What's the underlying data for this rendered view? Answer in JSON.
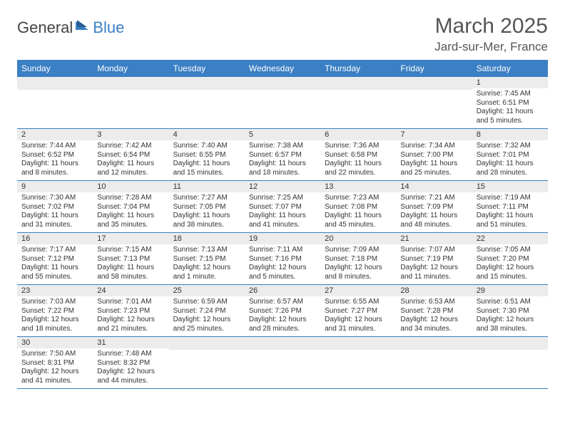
{
  "logo": {
    "part1": "General",
    "part2": "Blue"
  },
  "title": "March 2025",
  "location": "Jard-sur-Mer, France",
  "header_color": "#3b7fc4",
  "daynum_bg": "#ececec",
  "weekdays": [
    "Sunday",
    "Monday",
    "Tuesday",
    "Wednesday",
    "Thursday",
    "Friday",
    "Saturday"
  ],
  "weeks": [
    [
      {
        "num": "",
        "lines": []
      },
      {
        "num": "",
        "lines": []
      },
      {
        "num": "",
        "lines": []
      },
      {
        "num": "",
        "lines": []
      },
      {
        "num": "",
        "lines": []
      },
      {
        "num": "",
        "lines": []
      },
      {
        "num": "1",
        "lines": [
          "Sunrise: 7:45 AM",
          "Sunset: 6:51 PM",
          "Daylight: 11 hours and 5 minutes."
        ]
      }
    ],
    [
      {
        "num": "2",
        "lines": [
          "Sunrise: 7:44 AM",
          "Sunset: 6:52 PM",
          "Daylight: 11 hours and 8 minutes."
        ]
      },
      {
        "num": "3",
        "lines": [
          "Sunrise: 7:42 AM",
          "Sunset: 6:54 PM",
          "Daylight: 11 hours and 12 minutes."
        ]
      },
      {
        "num": "4",
        "lines": [
          "Sunrise: 7:40 AM",
          "Sunset: 6:55 PM",
          "Daylight: 11 hours and 15 minutes."
        ]
      },
      {
        "num": "5",
        "lines": [
          "Sunrise: 7:38 AM",
          "Sunset: 6:57 PM",
          "Daylight: 11 hours and 18 minutes."
        ]
      },
      {
        "num": "6",
        "lines": [
          "Sunrise: 7:36 AM",
          "Sunset: 6:58 PM",
          "Daylight: 11 hours and 22 minutes."
        ]
      },
      {
        "num": "7",
        "lines": [
          "Sunrise: 7:34 AM",
          "Sunset: 7:00 PM",
          "Daylight: 11 hours and 25 minutes."
        ]
      },
      {
        "num": "8",
        "lines": [
          "Sunrise: 7:32 AM",
          "Sunset: 7:01 PM",
          "Daylight: 11 hours and 28 minutes."
        ]
      }
    ],
    [
      {
        "num": "9",
        "lines": [
          "Sunrise: 7:30 AM",
          "Sunset: 7:02 PM",
          "Daylight: 11 hours and 31 minutes."
        ]
      },
      {
        "num": "10",
        "lines": [
          "Sunrise: 7:28 AM",
          "Sunset: 7:04 PM",
          "Daylight: 11 hours and 35 minutes."
        ]
      },
      {
        "num": "11",
        "lines": [
          "Sunrise: 7:27 AM",
          "Sunset: 7:05 PM",
          "Daylight: 11 hours and 38 minutes."
        ]
      },
      {
        "num": "12",
        "lines": [
          "Sunrise: 7:25 AM",
          "Sunset: 7:07 PM",
          "Daylight: 11 hours and 41 minutes."
        ]
      },
      {
        "num": "13",
        "lines": [
          "Sunrise: 7:23 AM",
          "Sunset: 7:08 PM",
          "Daylight: 11 hours and 45 minutes."
        ]
      },
      {
        "num": "14",
        "lines": [
          "Sunrise: 7:21 AM",
          "Sunset: 7:09 PM",
          "Daylight: 11 hours and 48 minutes."
        ]
      },
      {
        "num": "15",
        "lines": [
          "Sunrise: 7:19 AM",
          "Sunset: 7:11 PM",
          "Daylight: 11 hours and 51 minutes."
        ]
      }
    ],
    [
      {
        "num": "16",
        "lines": [
          "Sunrise: 7:17 AM",
          "Sunset: 7:12 PM",
          "Daylight: 11 hours and 55 minutes."
        ]
      },
      {
        "num": "17",
        "lines": [
          "Sunrise: 7:15 AM",
          "Sunset: 7:13 PM",
          "Daylight: 11 hours and 58 minutes."
        ]
      },
      {
        "num": "18",
        "lines": [
          "Sunrise: 7:13 AM",
          "Sunset: 7:15 PM",
          "Daylight: 12 hours and 1 minute."
        ]
      },
      {
        "num": "19",
        "lines": [
          "Sunrise: 7:11 AM",
          "Sunset: 7:16 PM",
          "Daylight: 12 hours and 5 minutes."
        ]
      },
      {
        "num": "20",
        "lines": [
          "Sunrise: 7:09 AM",
          "Sunset: 7:18 PM",
          "Daylight: 12 hours and 8 minutes."
        ]
      },
      {
        "num": "21",
        "lines": [
          "Sunrise: 7:07 AM",
          "Sunset: 7:19 PM",
          "Daylight: 12 hours and 11 minutes."
        ]
      },
      {
        "num": "22",
        "lines": [
          "Sunrise: 7:05 AM",
          "Sunset: 7:20 PM",
          "Daylight: 12 hours and 15 minutes."
        ]
      }
    ],
    [
      {
        "num": "23",
        "lines": [
          "Sunrise: 7:03 AM",
          "Sunset: 7:22 PM",
          "Daylight: 12 hours and 18 minutes."
        ]
      },
      {
        "num": "24",
        "lines": [
          "Sunrise: 7:01 AM",
          "Sunset: 7:23 PM",
          "Daylight: 12 hours and 21 minutes."
        ]
      },
      {
        "num": "25",
        "lines": [
          "Sunrise: 6:59 AM",
          "Sunset: 7:24 PM",
          "Daylight: 12 hours and 25 minutes."
        ]
      },
      {
        "num": "26",
        "lines": [
          "Sunrise: 6:57 AM",
          "Sunset: 7:26 PM",
          "Daylight: 12 hours and 28 minutes."
        ]
      },
      {
        "num": "27",
        "lines": [
          "Sunrise: 6:55 AM",
          "Sunset: 7:27 PM",
          "Daylight: 12 hours and 31 minutes."
        ]
      },
      {
        "num": "28",
        "lines": [
          "Sunrise: 6:53 AM",
          "Sunset: 7:28 PM",
          "Daylight: 12 hours and 34 minutes."
        ]
      },
      {
        "num": "29",
        "lines": [
          "Sunrise: 6:51 AM",
          "Sunset: 7:30 PM",
          "Daylight: 12 hours and 38 minutes."
        ]
      }
    ],
    [
      {
        "num": "30",
        "lines": [
          "Sunrise: 7:50 AM",
          "Sunset: 8:31 PM",
          "Daylight: 12 hours and 41 minutes."
        ]
      },
      {
        "num": "31",
        "lines": [
          "Sunrise: 7:48 AM",
          "Sunset: 8:32 PM",
          "Daylight: 12 hours and 44 minutes."
        ]
      },
      {
        "num": "",
        "lines": []
      },
      {
        "num": "",
        "lines": []
      },
      {
        "num": "",
        "lines": []
      },
      {
        "num": "",
        "lines": []
      },
      {
        "num": "",
        "lines": []
      }
    ]
  ]
}
